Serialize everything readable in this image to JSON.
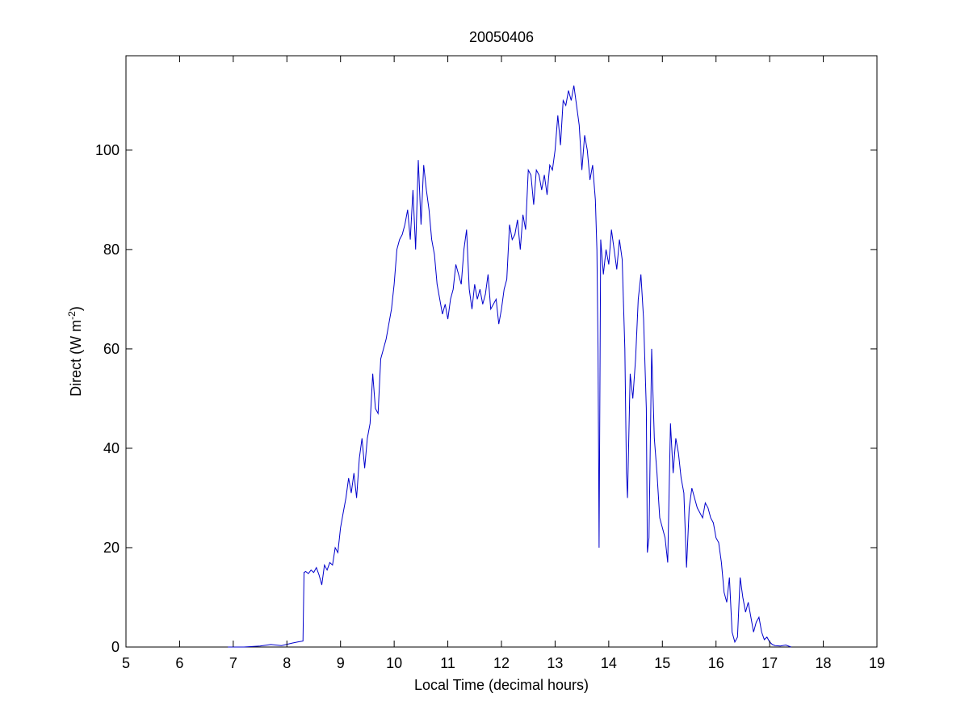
{
  "chart_data": {
    "type": "line",
    "title": "20050406",
    "xlabel": "Local Time (decimal hours)",
    "ylabel": "Direct (W m",
    "ylabel_sup": "-2",
    "ylabel_close": ")",
    "xlim": [
      5,
      19
    ],
    "ylim": [
      0,
      119
    ],
    "xticks": [
      5,
      6,
      7,
      8,
      9,
      10,
      11,
      12,
      13,
      14,
      15,
      16,
      17,
      18,
      19
    ],
    "yticks": [
      0,
      20,
      40,
      60,
      80,
      100
    ],
    "grid": false,
    "line_color": "#0000cc",
    "series": [
      {
        "x": [
          6.9,
          7.2,
          7.5,
          7.7,
          7.9,
          8.1,
          8.2,
          8.3,
          8.32,
          8.35,
          8.4,
          8.45,
          8.5,
          8.55,
          8.6,
          8.65,
          8.7,
          8.75,
          8.8,
          8.85,
          8.9,
          8.95,
          9.0,
          9.05,
          9.1,
          9.15,
          9.2,
          9.25,
          9.3,
          9.35,
          9.4,
          9.45,
          9.5,
          9.55,
          9.6,
          9.65,
          9.7,
          9.75,
          9.8,
          9.85,
          9.9,
          9.95,
          10.0,
          10.05,
          10.1,
          10.15,
          10.2,
          10.25,
          10.3,
          10.35,
          10.4,
          10.45,
          10.5,
          10.55,
          10.6,
          10.65,
          10.7,
          10.75,
          10.8,
          10.85,
          10.9,
          10.95,
          11.0,
          11.05,
          11.1,
          11.15,
          11.2,
          11.25,
          11.3,
          11.35,
          11.4,
          11.45,
          11.5,
          11.55,
          11.6,
          11.65,
          11.7,
          11.75,
          11.8,
          11.85,
          11.9,
          11.95,
          12.0,
          12.05,
          12.1,
          12.15,
          12.2,
          12.25,
          12.3,
          12.35,
          12.4,
          12.45,
          12.5,
          12.55,
          12.6,
          12.65,
          12.7,
          12.75,
          12.8,
          12.85,
          12.9,
          12.95,
          13.0,
          13.05,
          13.1,
          13.15,
          13.2,
          13.25,
          13.3,
          13.35,
          13.4,
          13.45,
          13.5,
          13.55,
          13.6,
          13.65,
          13.7,
          13.75,
          13.78,
          13.8,
          13.82,
          13.85,
          13.9,
          13.95,
          14.0,
          14.05,
          14.1,
          14.15,
          14.2,
          14.25,
          14.3,
          14.33,
          14.35,
          14.4,
          14.45,
          14.5,
          14.55,
          14.6,
          14.65,
          14.7,
          14.72,
          14.75,
          14.8,
          14.85,
          14.9,
          14.95,
          15.0,
          15.05,
          15.1,
          15.15,
          15.2,
          15.25,
          15.3,
          15.35,
          15.4,
          15.45,
          15.5,
          15.55,
          15.6,
          15.65,
          15.7,
          15.75,
          15.8,
          15.85,
          15.9,
          15.95,
          16.0,
          16.05,
          16.1,
          16.15,
          16.2,
          16.25,
          16.3,
          16.35,
          16.4,
          16.45,
          16.5,
          16.55,
          16.6,
          16.65,
          16.7,
          16.75,
          16.8,
          16.85,
          16.9,
          16.95,
          17.0,
          17.05,
          17.1,
          17.2,
          17.3,
          17.4
        ],
        "y": [
          0,
          0,
          0.2,
          0.5,
          0.3,
          0.8,
          1,
          1.2,
          15,
          15.2,
          14.8,
          15.5,
          15,
          16,
          14.5,
          12.5,
          16.5,
          15.5,
          17,
          16.5,
          20,
          19,
          24,
          27,
          30,
          34,
          31,
          35,
          30,
          38,
          42,
          36,
          42,
          45,
          55,
          48,
          47,
          58,
          60,
          62,
          65,
          68,
          73,
          80,
          82,
          83,
          85,
          88,
          82,
          92,
          80,
          98,
          85,
          97,
          92,
          88,
          82,
          79,
          73,
          70,
          67,
          69,
          66,
          70,
          72,
          77,
          75,
          73,
          80,
          84,
          72,
          68,
          73,
          70,
          72,
          69,
          71,
          75,
          68,
          69,
          70,
          65,
          68,
          72,
          74,
          85,
          82,
          83,
          86,
          80,
          87,
          84,
          96,
          95,
          89,
          96,
          95,
          92,
          95,
          91,
          97,
          96,
          100,
          107,
          101,
          110,
          109,
          112,
          110,
          113,
          109,
          105,
          96,
          103,
          100,
          94,
          97,
          90,
          80,
          60,
          20,
          82,
          75,
          80,
          77,
          84,
          80,
          76,
          82,
          78,
          60,
          35,
          30,
          55,
          50,
          58,
          70,
          75,
          66,
          48,
          19,
          22,
          60,
          42,
          35,
          26,
          24,
          22,
          17,
          45,
          35,
          42,
          39,
          34,
          31,
          16,
          28,
          32,
          30,
          28,
          27,
          26,
          29,
          28,
          26,
          25,
          22,
          21,
          17,
          11,
          9,
          14,
          3,
          1,
          2,
          14,
          10,
          7,
          9,
          6,
          3,
          5,
          6,
          3,
          1.5,
          2,
          1,
          0.5,
          0.3,
          0.2,
          0.4,
          0
        ]
      }
    ]
  }
}
